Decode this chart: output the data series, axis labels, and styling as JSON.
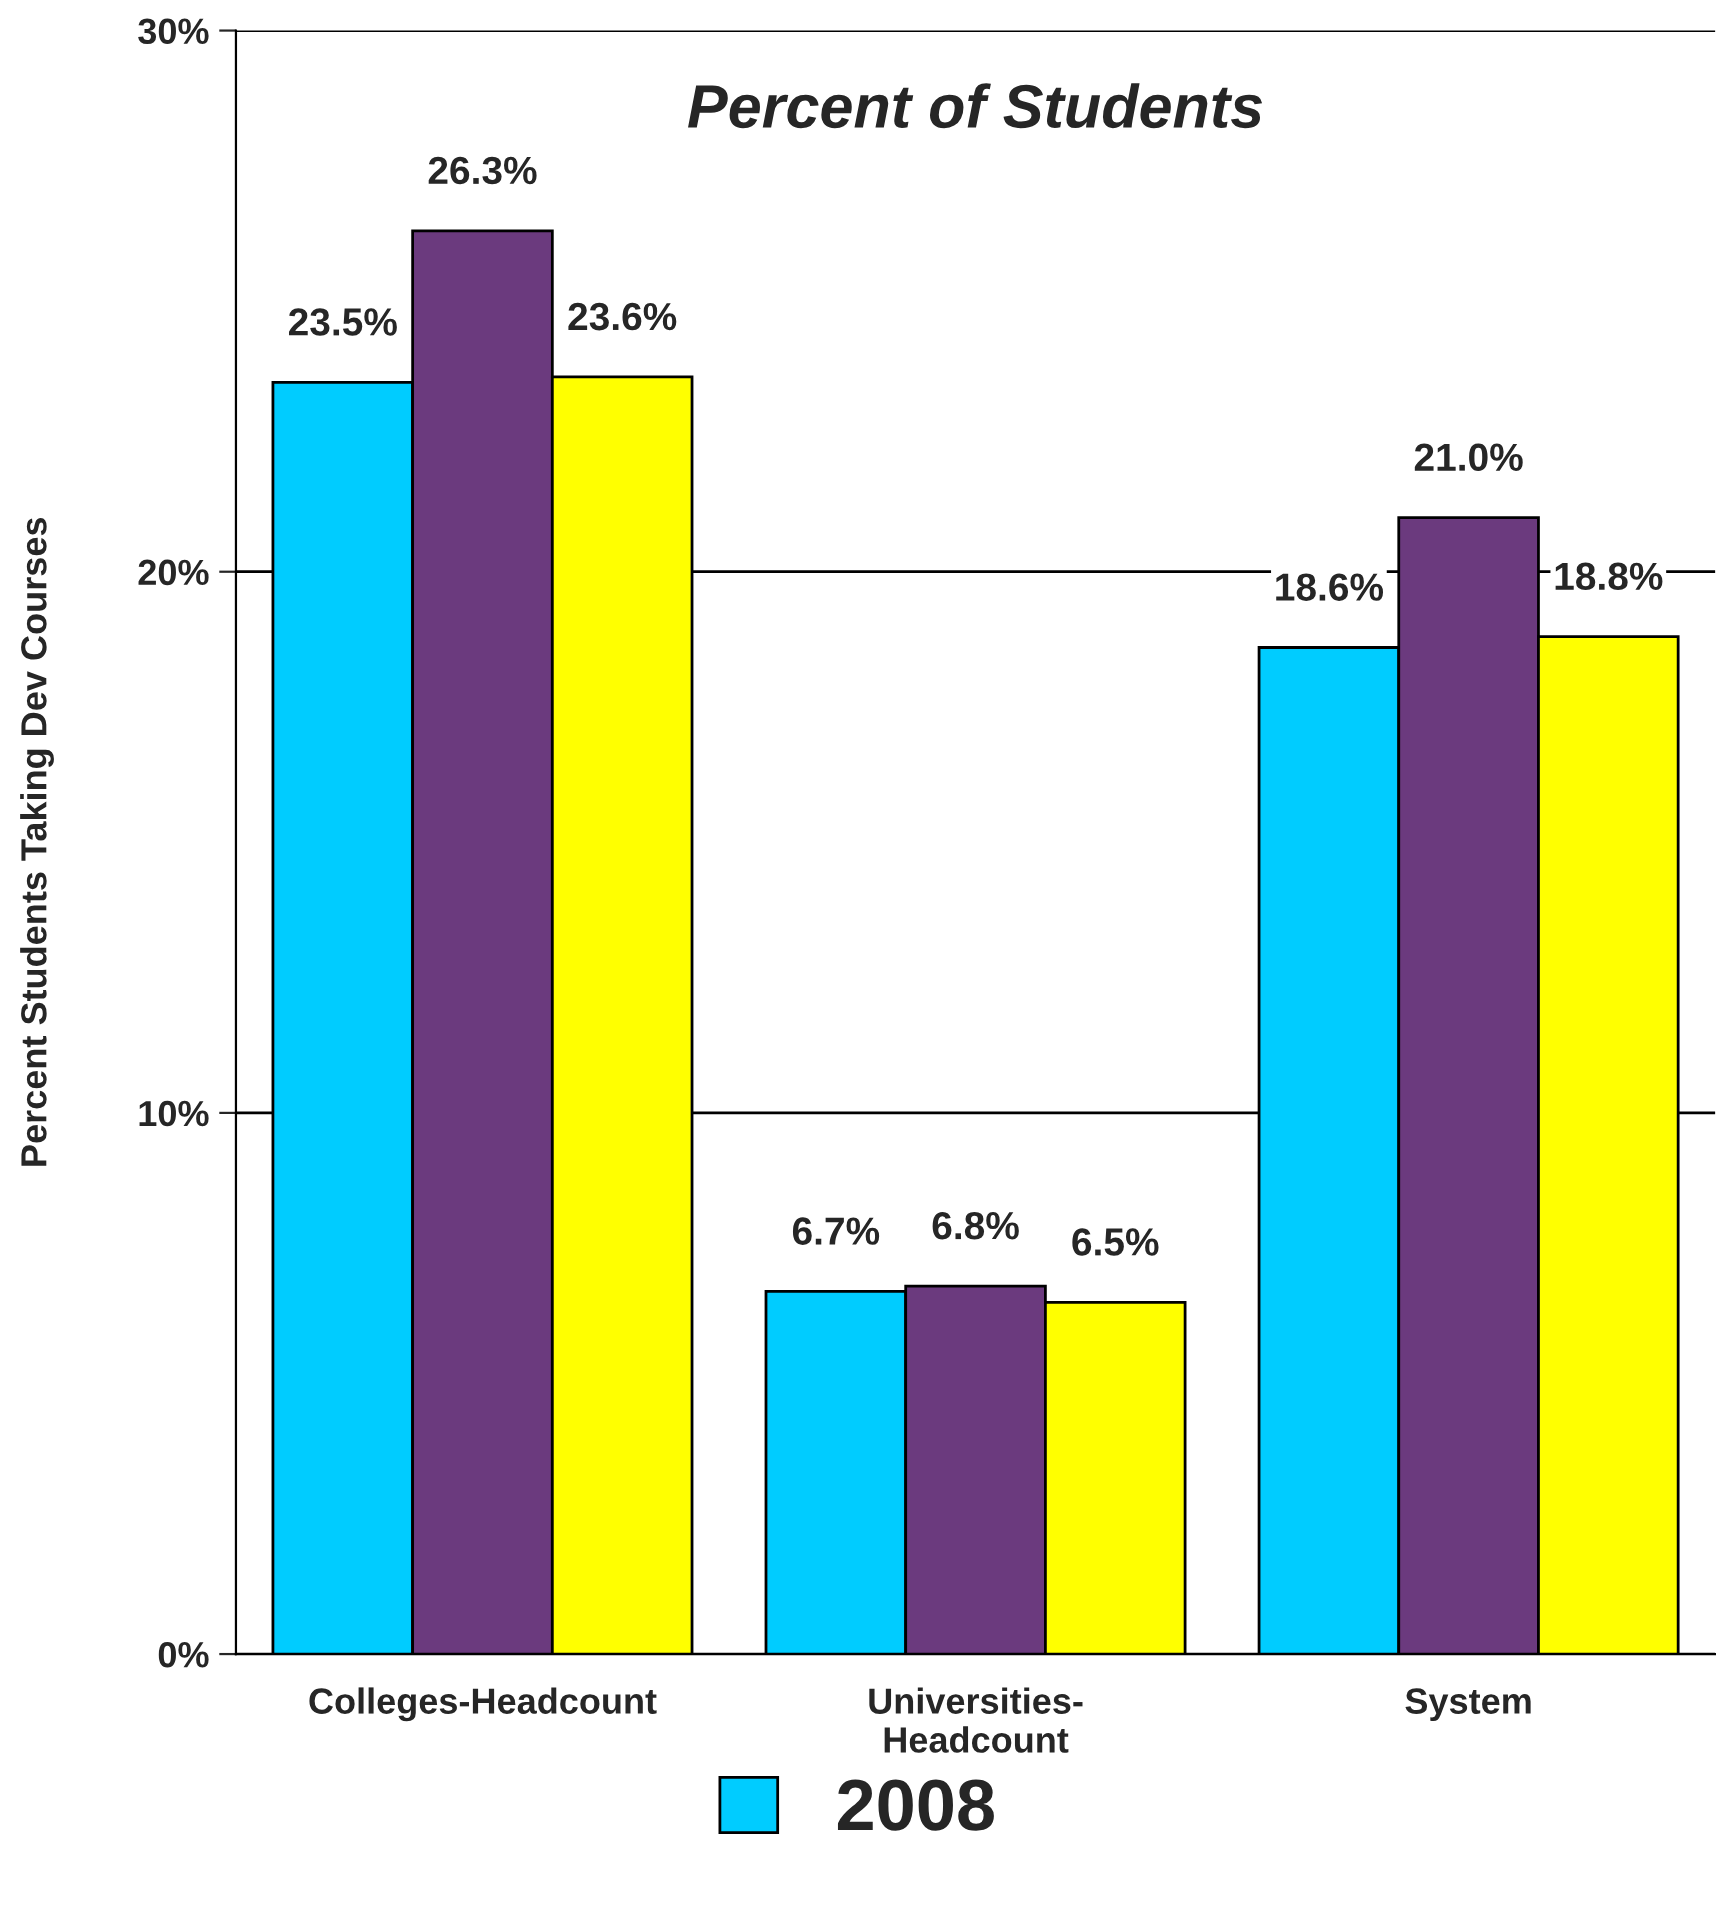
{
  "chart_data": {
    "type": "bar",
    "title": "Percent of Students",
    "ylabel": "Percent Students Taking Dev Courses",
    "categories": [
      "Colleges-Headcount",
      "Universities-\nHeadcount",
      "System"
    ],
    "series": [
      {
        "name": "2008",
        "color": "#00ccff",
        "values": [
          23.5,
          6.7,
          18.6
        ],
        "value_labels": [
          "23.5%",
          "6.7%",
          "18.6%"
        ]
      },
      {
        "color": "#6b3a7e",
        "values": [
          26.3,
          6.8,
          21.0
        ],
        "value_labels": [
          "26.3%",
          "6.8%",
          "21.0%"
        ]
      },
      {
        "color": "#ffff00",
        "values": [
          23.6,
          6.5,
          18.8
        ],
        "value_labels": [
          "23.6%",
          "6.5%",
          "18.8%"
        ]
      }
    ],
    "ylim": [
      0,
      30
    ],
    "yticks": [
      {
        "value": 0,
        "label": "0%"
      },
      {
        "value": 10,
        "label": "10%"
      },
      {
        "value": 20,
        "label": "20%"
      },
      {
        "value": 30,
        "label": "30%"
      }
    ],
    "grid": "y",
    "legend": "bottom"
  }
}
